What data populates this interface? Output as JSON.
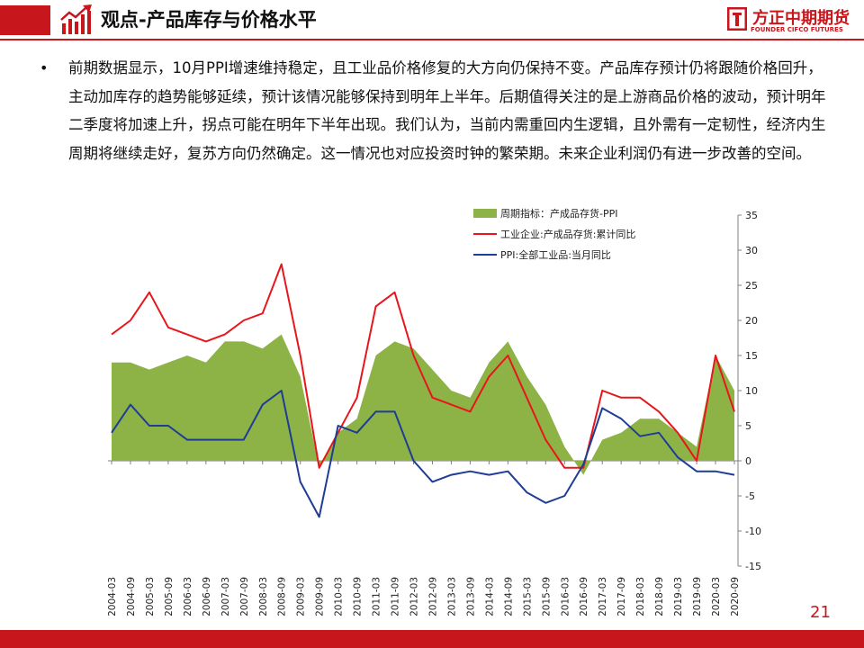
{
  "header": {
    "title": "观点-产品库存与价格水平",
    "logo_cn": "方正中期期货",
    "logo_en": "FOUNDER CIFCO FUTURES"
  },
  "body": {
    "bullet": "•",
    "paragraph": "前期数据显示，10月PPI增速维持稳定，且工业品价格修复的大方向仍保持不变。产品库存预计仍将跟随价格回升，主动加库存的趋势能够延续，预计该情况能够保持到明年上半年。后期值得关注的是上游商品价格的波动，预计明年二季度将加速上升，拐点可能在明年下半年出现。我们认为，当前内需重回内生逻辑，且外需有一定韧性，经济内生周期将继续走好，复苏方向仍然确定。这一情况也对应投资时钟的繁荣期。未来企业利润仍有进一步改善的空间。"
  },
  "page_number": "21",
  "colors": {
    "brand": "#c8161d",
    "area": "#8db346",
    "red_line": "#e8161b",
    "blue_line": "#1f3c96"
  },
  "chart_data": {
    "type": "line",
    "x_tick_labels": [
      "2004-03",
      "2004-09",
      "2005-03",
      "2005-09",
      "2006-03",
      "2006-09",
      "2007-03",
      "2007-09",
      "2008-03",
      "2008-09",
      "2009-03",
      "2009-09",
      "2010-03",
      "2010-09",
      "2011-03",
      "2011-09",
      "2012-03",
      "2012-09",
      "2013-03",
      "2013-09",
      "2014-03",
      "2014-09",
      "2015-03",
      "2015-09",
      "2016-03",
      "2016-09",
      "2017-03",
      "2017-09",
      "2018-03",
      "2018-09",
      "2019-03",
      "2019-09",
      "2020-03",
      "2020-09"
    ],
    "ylim": [
      -15,
      35
    ],
    "y_ticks": [
      35,
      30,
      25,
      20,
      15,
      10,
      5,
      0,
      -5,
      -10,
      -15
    ],
    "y_axis_position": "right",
    "legend_position": "top-left",
    "grid": false,
    "series": [
      {
        "name": "周期指标：产成品存货-PPI",
        "type": "area",
        "x": [
          "2004-03",
          "2004-09",
          "2005-03",
          "2005-09",
          "2006-03",
          "2006-09",
          "2007-03",
          "2007-09",
          "2008-03",
          "2008-09",
          "2009-03",
          "2009-09",
          "2010-03",
          "2010-09",
          "2011-03",
          "2011-09",
          "2012-03",
          "2012-09",
          "2013-03",
          "2013-09",
          "2014-03",
          "2014-09",
          "2015-03",
          "2015-09",
          "2016-03",
          "2016-09",
          "2017-03",
          "2017-09",
          "2018-03",
          "2018-09",
          "2019-03",
          "2019-09",
          "2020-03",
          "2020-09"
        ],
        "values": [
          14,
          14,
          13,
          14,
          15,
          14,
          17,
          17,
          16,
          18,
          12,
          -1,
          4,
          6,
          15,
          17,
          16,
          13,
          10,
          9,
          14,
          17,
          12,
          8,
          2,
          -2,
          3,
          4,
          6,
          6,
          4,
          2,
          15,
          10
        ]
      },
      {
        "name": "工业企业:产成品存货:累计同比",
        "type": "line",
        "x": [
          "2004-03",
          "2004-09",
          "2005-03",
          "2005-09",
          "2006-03",
          "2006-09",
          "2007-03",
          "2007-09",
          "2008-03",
          "2008-09",
          "2009-03",
          "2009-09",
          "2010-03",
          "2010-09",
          "2011-03",
          "2011-09",
          "2012-03",
          "2012-09",
          "2013-03",
          "2013-09",
          "2014-03",
          "2014-09",
          "2015-03",
          "2015-09",
          "2016-03",
          "2016-09",
          "2017-03",
          "2017-09",
          "2018-03",
          "2018-09",
          "2019-03",
          "2019-09",
          "2020-03",
          "2020-09"
        ],
        "values": [
          18,
          20,
          24,
          19,
          18,
          17,
          18,
          20,
          21,
          28,
          15,
          -1,
          4,
          9,
          22,
          24,
          15,
          9,
          8,
          7,
          12,
          15,
          9,
          3,
          -1,
          -1,
          10,
          9,
          9,
          7,
          4,
          0,
          15,
          7
        ]
      },
      {
        "name": "PPI:全部工业品:当月同比",
        "type": "line",
        "x": [
          "2004-03",
          "2004-09",
          "2005-03",
          "2005-09",
          "2006-03",
          "2006-09",
          "2007-03",
          "2007-09",
          "2008-03",
          "2008-09",
          "2009-03",
          "2009-09",
          "2010-03",
          "2010-09",
          "2011-03",
          "2011-09",
          "2012-03",
          "2012-09",
          "2013-03",
          "2013-09",
          "2014-03",
          "2014-09",
          "2015-03",
          "2015-09",
          "2016-03",
          "2016-09",
          "2017-03",
          "2017-09",
          "2018-03",
          "2018-09",
          "2019-03",
          "2019-09",
          "2020-03",
          "2020-09"
        ],
        "values": [
          4,
          8,
          5,
          5,
          3,
          3,
          3,
          3,
          8,
          10,
          -3,
          -8,
          5,
          4,
          7,
          7,
          0,
          -3,
          -2,
          -1.5,
          -2,
          -1.5,
          -4.5,
          -6,
          -5,
          -0.5,
          7.5,
          6,
          3.5,
          4,
          0.5,
          -1.5,
          -1.5,
          -2
        ]
      }
    ]
  }
}
